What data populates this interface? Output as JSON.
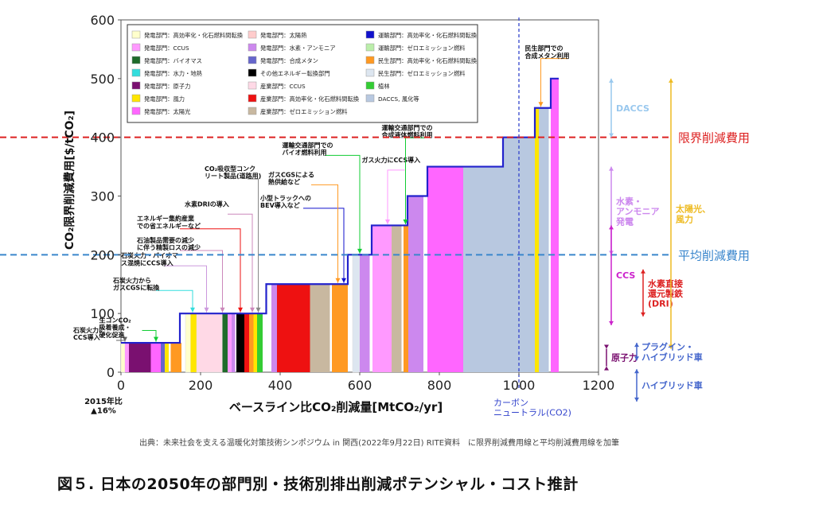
{
  "chart_data": {
    "type": "bar",
    "xlabel": "ベースライン比CO₂削減量[MtCO₂/yr]",
    "ylabel": "CO₂限界削減費用[$/tCO₂]",
    "xlim": [
      0,
      1200
    ],
    "ylim": [
      0,
      600
    ],
    "xticks": [
      0,
      200,
      400,
      600,
      800,
      1000,
      1200
    ],
    "yticks": [
      0,
      100,
      200,
      300,
      400,
      500,
      600
    ],
    "grid": false,
    "legend_position": "top-left",
    "legend": [
      {
        "label": "発電部門：高効率化・化石燃料間転換",
        "color": "#ffffcc"
      },
      {
        "label": "発電部門：CCUS",
        "color": "#ff99ff"
      },
      {
        "label": "発電部門：バイオマス",
        "color": "#1f6b2a"
      },
      {
        "label": "発電部門：水力・地熱",
        "color": "#33dddd"
      },
      {
        "label": "発電部門：原子力",
        "color": "#7a1070"
      },
      {
        "label": "発電部門：風力",
        "color": "#ffe600"
      },
      {
        "label": "発電部門：太陽光",
        "color": "#ff66ff"
      },
      {
        "label": "発電部門：太陽熱",
        "color": "#ffcccc"
      },
      {
        "label": "発電部門：水素・アンモニア",
        "color": "#cc88ee"
      },
      {
        "label": "発電部門：合成メタン",
        "color": "#6666cc"
      },
      {
        "label": "その他エネルギー転換部門",
        "color": "#000000"
      },
      {
        "label": "産業部門：CCUS",
        "color": "#ffd9e6"
      },
      {
        "label": "産業部門：高効率化・化石燃料間転換",
        "color": "#ee1111"
      },
      {
        "label": "産業部門：ゼロエミッション燃料",
        "color": "#c8b8a0"
      },
      {
        "label": "運輸部門：高効率化・化石燃料間転換",
        "color": "#1111cc"
      },
      {
        "label": "運輸部門：ゼロエミッション燃料",
        "color": "#bbeeaa"
      },
      {
        "label": "民生部門：高効率化・化石燃料間転換",
        "color": "#ff9922"
      },
      {
        "label": "民生部門：ゼロエミッション燃料",
        "color": "#dde6f0"
      },
      {
        "label": "植林",
        "color": "#33cc33"
      },
      {
        "label": "DACCS, 風化等",
        "color": "#b8c8e0"
      }
    ],
    "bars": [
      {
        "x0": 0,
        "x1": 10,
        "y": 50,
        "color": "#ffffcc"
      },
      {
        "x0": 10,
        "x1": 20,
        "y": 50,
        "color": "#ff99ff"
      },
      {
        "x0": 20,
        "x1": 75,
        "y": 50,
        "color": "#7a1070"
      },
      {
        "x0": 75,
        "x1": 100,
        "y": 50,
        "color": "#ff66ff"
      },
      {
        "x0": 100,
        "x1": 110,
        "y": 50,
        "color": "#6666cc"
      },
      {
        "x0": 110,
        "x1": 120,
        "y": 50,
        "color": "#ffe600"
      },
      {
        "x0": 125,
        "x1": 152,
        "y": 50,
        "color": "#ff9922"
      },
      {
        "x0": 162,
        "x1": 175,
        "y": 100,
        "color": "#ffffcc"
      },
      {
        "x0": 175,
        "x1": 190,
        "y": 100,
        "color": "#ffe600"
      },
      {
        "x0": 190,
        "x1": 255,
        "y": 100,
        "color": "#ffd9e6"
      },
      {
        "x0": 255,
        "x1": 268,
        "y": 100,
        "color": "#1f6b2a"
      },
      {
        "x0": 268,
        "x1": 278,
        "y": 100,
        "color": "#ff99ff"
      },
      {
        "x0": 278,
        "x1": 287,
        "y": 100,
        "color": "#cc88ee"
      },
      {
        "x0": 290,
        "x1": 310,
        "y": 100,
        "color": "#000000"
      },
      {
        "x0": 310,
        "x1": 322,
        "y": 100,
        "color": "#ee1111"
      },
      {
        "x0": 322,
        "x1": 333,
        "y": 100,
        "color": "#ff9922"
      },
      {
        "x0": 333,
        "x1": 342,
        "y": 100,
        "color": "#ffe600"
      },
      {
        "x0": 342,
        "x1": 356,
        "y": 100,
        "color": "#33cc33"
      },
      {
        "x0": 378,
        "x1": 392,
        "y": 150,
        "color": "#cc88ee"
      },
      {
        "x0": 392,
        "x1": 475,
        "y": 150,
        "color": "#ee1111"
      },
      {
        "x0": 475,
        "x1": 525,
        "y": 150,
        "color": "#c8b8a0"
      },
      {
        "x0": 530,
        "x1": 570,
        "y": 150,
        "color": "#ff9922"
      },
      {
        "x0": 582,
        "x1": 600,
        "y": 200,
        "color": "#dde6f0"
      },
      {
        "x0": 600,
        "x1": 625,
        "y": 200,
        "color": "#cc88ee"
      },
      {
        "x0": 632,
        "x1": 680,
        "y": 250,
        "color": "#ff99ff"
      },
      {
        "x0": 680,
        "x1": 705,
        "y": 250,
        "color": "#c8b8a0"
      },
      {
        "x0": 710,
        "x1": 722,
        "y": 250,
        "color": "#ff9922"
      },
      {
        "x0": 722,
        "x1": 760,
        "y": 300,
        "color": "#cc88ee"
      },
      {
        "x0": 770,
        "x1": 860,
        "y": 350,
        "color": "#ff66ff"
      },
      {
        "x0": 860,
        "x1": 960,
        "y": 350,
        "color": "#b8c8e0"
      },
      {
        "x0": 960,
        "x1": 1040,
        "y": 400,
        "color": "#b8c8e0"
      },
      {
        "x0": 1040,
        "x1": 1050,
        "y": 450,
        "color": "#ffe600"
      },
      {
        "x0": 1050,
        "x1": 1075,
        "y": 450,
        "color": "#b8c8e0"
      },
      {
        "x0": 1080,
        "x1": 1100,
        "y": 500,
        "color": "#ff66ff"
      }
    ],
    "step_line": [
      [
        0,
        50
      ],
      [
        148,
        50
      ],
      [
        148,
        100
      ],
      [
        365,
        100
      ],
      [
        365,
        150
      ],
      [
        570,
        150
      ],
      [
        570,
        200
      ],
      [
        630,
        200
      ],
      [
        630,
        250
      ],
      [
        720,
        250
      ],
      [
        720,
        300
      ],
      [
        770,
        300
      ],
      [
        770,
        350
      ],
      [
        960,
        350
      ],
      [
        960,
        400
      ],
      [
        1040,
        400
      ],
      [
        1040,
        450
      ],
      [
        1080,
        450
      ],
      [
        1080,
        500
      ],
      [
        1100,
        500
      ]
    ],
    "hlines": [
      {
        "y": 400,
        "label": "限界削減費用",
        "color": "#dd2222",
        "style": "dashed"
      },
      {
        "y": 200,
        "label": "平均削減費用",
        "color": "#3a86cc",
        "style": "dashed"
      }
    ],
    "vline": {
      "x": 1000,
      "label": "カーボン\nニュートラル(CO2)",
      "color": "#3344cc"
    },
    "annotations": [
      {
        "text": "石炭火力に\nCCS導入",
        "x": -20,
        "y": 65,
        "tx": 10,
        "ty": 52,
        "color": "#666"
      },
      {
        "text": "生コンCO₂\n吸着養成・\n硬化促進",
        "x": 45,
        "y": 82,
        "tx": 88,
        "ty": 52,
        "color": "#1c3"
      },
      {
        "text": "石炭火力から\nガスCGSに転換",
        "x": 80,
        "y": 150,
        "tx": 180,
        "ty": 102,
        "color": "#33dddd"
      },
      {
        "text": "石炭火力・バイオマ\nス混焼にCCS導入",
        "x": 100,
        "y": 192,
        "tx": 215,
        "ty": 102,
        "color": "#c9d"
      },
      {
        "text": "石油製品需要の減少\nに伴う精製ロスの減少",
        "x": 140,
        "y": 218,
        "tx": 255,
        "ty": 102,
        "color": "#c8b"
      },
      {
        "text": "エネルギー集約産業\nでの省エネルギーなど",
        "x": 140,
        "y": 255,
        "tx": 300,
        "ty": 102,
        "color": "#ee1111"
      },
      {
        "text": "水素DRIの導入",
        "x": 260,
        "y": 280,
        "tx": 330,
        "ty": 102,
        "color": "#c8b"
      },
      {
        "text": "CO₂吸収型コンク\nリート製品(道路用)",
        "x": 310,
        "y": 340,
        "tx": 345,
        "ty": 102,
        "color": "#888"
      },
      {
        "text": "小型トラックへの\nBEV導入など",
        "x": 450,
        "y": 290,
        "tx": 560,
        "ty": 152,
        "color": "#1111cc"
      },
      {
        "text": "ガスCGSによる\n熱供給など",
        "x": 470,
        "y": 330,
        "tx": 545,
        "ty": 152,
        "color": "#ff9922"
      },
      {
        "text": "運輸交通部門での\nバイオ燃料利用",
        "x": 505,
        "y": 380,
        "tx": 600,
        "ty": 202,
        "color": "#1c3"
      },
      {
        "text": "ガス火力にCCS導入",
        "x": 705,
        "y": 355,
        "tx": 670,
        "ty": 252,
        "color": "#ff99ff"
      },
      {
        "text": "運輸交通部門での\n合成液体燃料利用",
        "x": 755,
        "y": 410,
        "tx": 715,
        "ty": 252,
        "color": "#1c3"
      },
      {
        "text": "民生部門での\n合成メタン利用",
        "x": 1115,
        "y": 545,
        "tx": 1055,
        "ty": 452,
        "color": "#ff9922"
      }
    ],
    "side_bands": [
      {
        "label": "DACCS",
        "y0": 400,
        "y1": 500,
        "color": "#99c8ee"
      },
      {
        "label": "水素・\nアンモニア\n発電",
        "y0": 200,
        "y1": 350,
        "color": "#cc88ee"
      },
      {
        "label": "CCS",
        "y0": 80,
        "y1": 250,
        "color": "#cc22cc"
      },
      {
        "label": "原子力",
        "y0": 40,
        "y1": 10,
        "color": "#7a1070"
      },
      {
        "label": "水素直接\n還元製鉄\n(DRI)",
        "y0": 95,
        "y1": 175,
        "color": "#dd2222"
      },
      {
        "label": "太陽光、\n風力",
        "y0": 40,
        "y1": 500,
        "color": "#eebb22"
      },
      {
        "label": "プラグイン・\nハイブリッド車",
        "y0": 20,
        "y1": 50,
        "color": "#4466cc"
      },
      {
        "label": "ハイブリッド車",
        "y0": -50,
        "y1": 5,
        "color": "#4466cc"
      }
    ],
    "below_axis_note": "2015年比\n▲16%"
  },
  "source_note": "出典：未来社会を支える温暖化対策技術シンポジウム in 関西(2022年9月22日) RITE資料　に限界削減費用線と平均削減費用線を加筆",
  "figure_title": "図５. 日本の2050年の部門別・技術別排出削減ポテンシャル・コスト推計"
}
